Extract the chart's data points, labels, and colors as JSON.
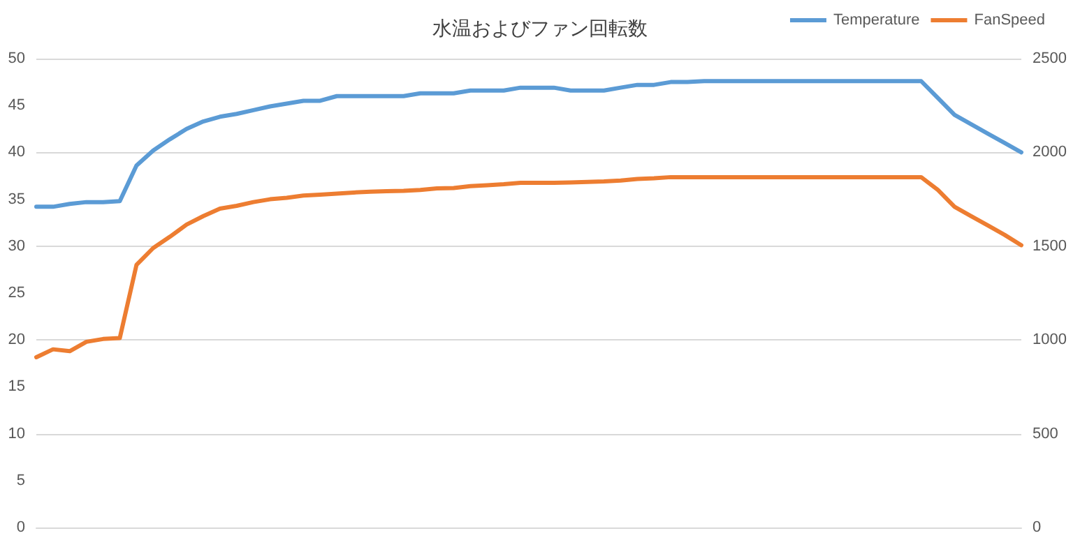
{
  "chart_data": {
    "type": "line",
    "title": "水温およびファン回転数",
    "categories": [
      null,
      null,
      null,
      null,
      null,
      null,
      null,
      null,
      null,
      null,
      null,
      null,
      null,
      null,
      null,
      null,
      null,
      null,
      null,
      null,
      null,
      null,
      null,
      null,
      null,
      null,
      null,
      null,
      null,
      null,
      null,
      null,
      null,
      null,
      null,
      null,
      null,
      null,
      null,
      null,
      null,
      null,
      null,
      null,
      null,
      null,
      null,
      null,
      null,
      null,
      null,
      null,
      null,
      null,
      null,
      null,
      null,
      null,
      null,
      null
    ],
    "series": [
      {
        "name": "Temperature",
        "color": "#5b9bd5",
        "values": [
          34.2,
          34.2,
          34.5,
          34.7,
          34.7,
          34.8,
          38.6,
          40.2,
          41.4,
          42.5,
          43.3,
          43.8,
          44.1,
          44.5,
          44.9,
          45.2,
          45.5,
          45.5,
          46.0,
          46.0,
          46.0,
          46.0,
          46.0,
          46.3,
          46.3,
          46.3,
          46.6,
          46.6,
          46.6,
          46.9,
          46.9,
          46.9,
          46.6,
          46.6,
          46.6,
          46.9,
          47.2,
          47.2,
          47.5,
          47.5,
          47.6,
          47.6,
          47.6,
          47.6,
          47.6,
          47.6,
          47.6,
          47.6,
          47.6,
          47.6,
          47.6,
          47.6,
          47.6,
          47.6,
          45.8,
          44.0,
          43.0,
          42.0,
          41.0,
          40.0
        ]
      },
      {
        "name": "FanSpeed",
        "color": "#ed7d31",
        "axis": "y2",
        "values": [
          908,
          950,
          940,
          990,
          1005,
          1010,
          1400,
          1490,
          1550,
          1615,
          1660,
          1700,
          1715,
          1735,
          1750,
          1758,
          1770,
          1775,
          1780,
          1786,
          1790,
          1793,
          1795,
          1800,
          1808,
          1810,
          1820,
          1825,
          1830,
          1838,
          1838,
          1838,
          1840,
          1842,
          1845,
          1850,
          1858,
          1862,
          1868,
          1868,
          1868,
          1868,
          1868,
          1868,
          1868,
          1868,
          1868,
          1868,
          1868,
          1868,
          1868,
          1868,
          1868,
          1868,
          1800,
          1710,
          1660,
          1610,
          1560,
          1505
        ]
      }
    ],
    "ylim": [
      0,
      50
    ],
    "yticks": [
      0,
      5,
      10,
      15,
      20,
      25,
      30,
      35,
      40,
      45,
      50
    ],
    "y2lim": [
      0,
      2500
    ],
    "y2ticks": [
      0,
      500,
      1000,
      1500,
      2000,
      2500
    ],
    "grid": "y",
    "legend": "top right",
    "marker": "none",
    "line_style": "solid"
  }
}
